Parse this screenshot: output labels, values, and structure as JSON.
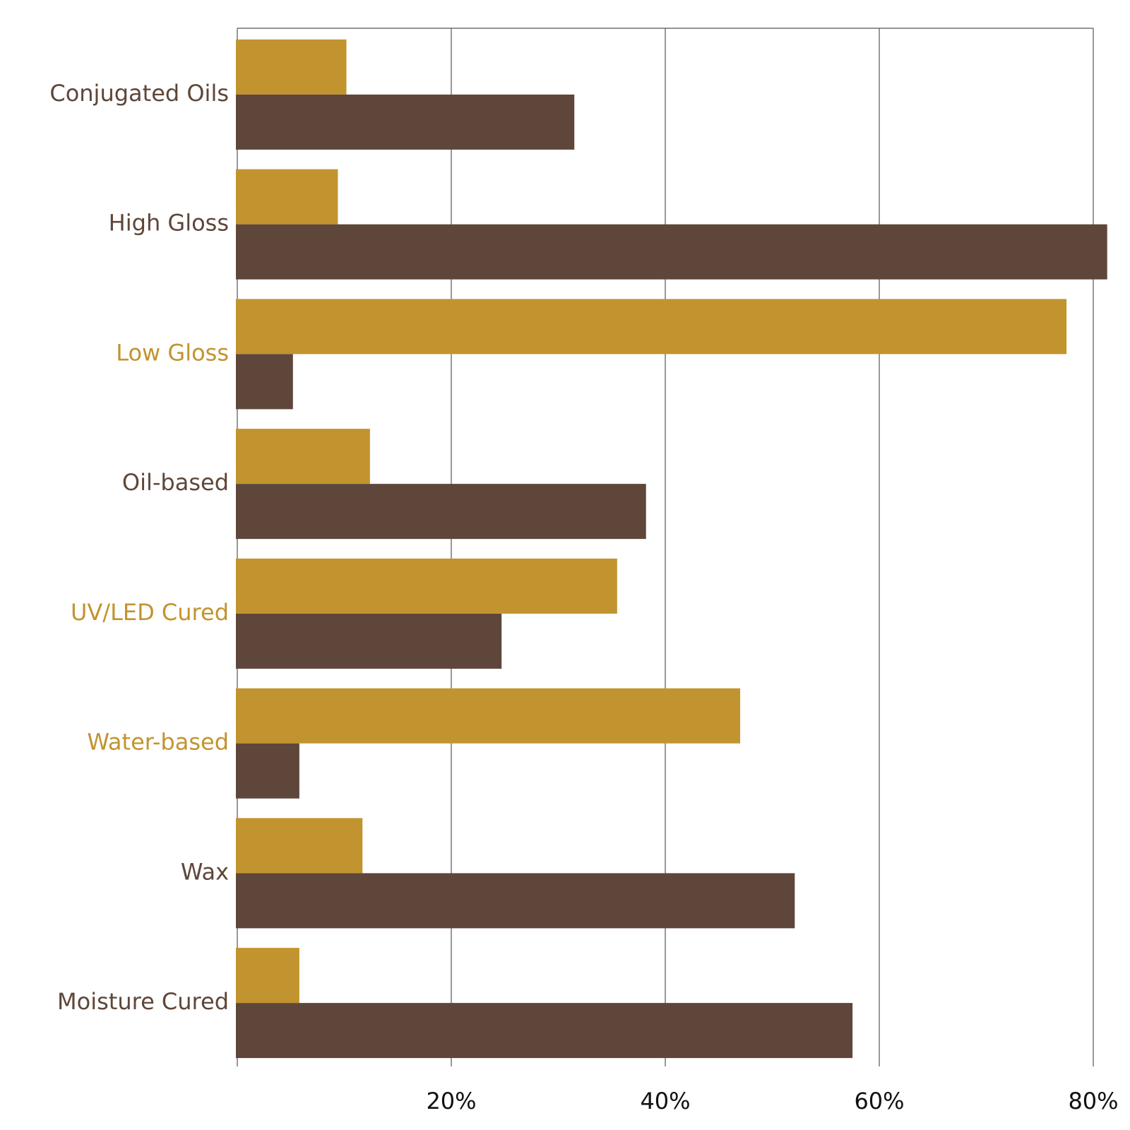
{
  "chart_data": {
    "type": "bar",
    "orientation": "horizontal",
    "categories": [
      "Conjugated Oils",
      "High Gloss",
      "Low Gloss",
      "Oil-based",
      "UV/LED Cured",
      "Water-based",
      "Wax",
      "Moisture Cured"
    ],
    "series": [
      {
        "values": [
          10.2,
          9.4,
          77.5,
          12.4,
          35.5,
          47.0,
          11.7,
          5.8
        ],
        "color": "#c2942f"
      },
      {
        "values": [
          31.5,
          81.3,
          5.2,
          38.2,
          24.7,
          5.8,
          52.1,
          57.5
        ],
        "color": "#5f463a"
      }
    ],
    "category_label_colors": [
      "#5f463a",
      "#5f463a",
      "#c2942f",
      "#5f463a",
      "#c2942f",
      "#c2942f",
      "#5f463a",
      "#5f463a"
    ],
    "xticks": [
      20,
      40,
      60,
      80
    ],
    "xtick_labels": [
      "20%",
      "40%",
      "60%",
      "80%"
    ],
    "xlim": [
      0,
      80
    ],
    "grid": true,
    "legend": "none"
  }
}
